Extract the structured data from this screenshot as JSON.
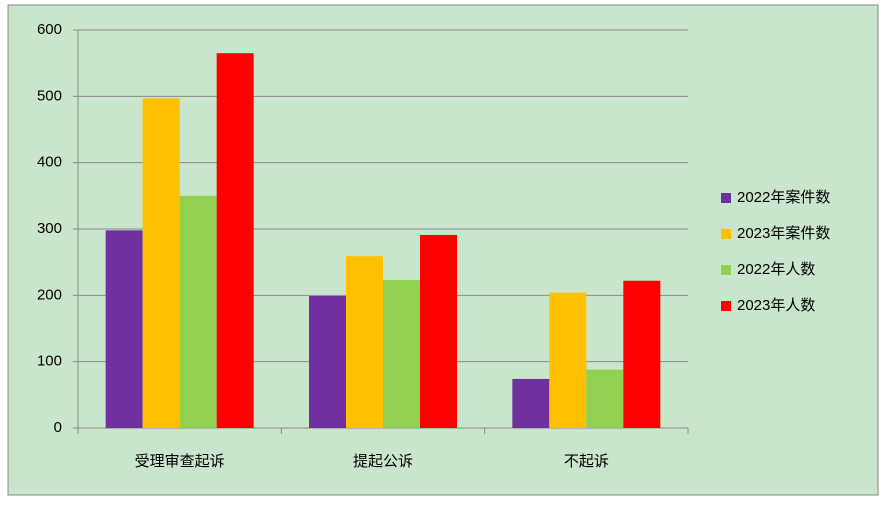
{
  "chart_data": {
    "type": "bar",
    "categories": [
      "受理审查起诉",
      "提起公诉",
      "不起诉"
    ],
    "series": [
      {
        "name": "2022年案件数",
        "color": "#7030a0",
        "values": [
          298,
          199,
          74
        ]
      },
      {
        "name": "2023年案件数",
        "color": "#ffc000",
        "values": [
          497,
          259,
          204
        ]
      },
      {
        "name": "2022年人数",
        "color": "#92d050",
        "values": [
          350,
          223,
          88
        ]
      },
      {
        "name": "2023年人数",
        "color": "#ff0000",
        "values": [
          565,
          291,
          222
        ]
      }
    ],
    "ylim": [
      0,
      600
    ],
    "yticks": [
      0,
      100,
      200,
      300,
      400,
      500,
      600
    ],
    "grid": true,
    "legend": "right"
  }
}
